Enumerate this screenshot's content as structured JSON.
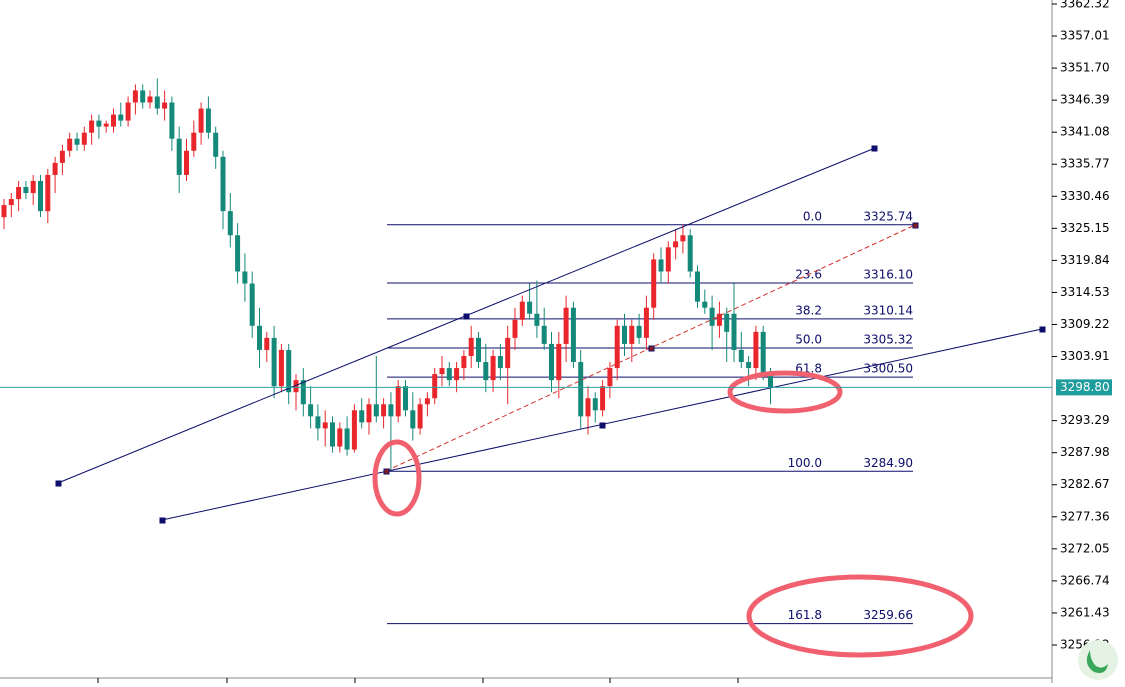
{
  "chart_data": {
    "type": "candlestick",
    "up_color": "#e8262b",
    "down_color": "#14897a",
    "ylim": [
      3250.65,
      3362.98
    ],
    "yticks": [
      3362.32,
      3357.01,
      {
        "value": 3351.7,
        "label": "3351.70"
      },
      3346.39,
      3341.08,
      3335.77,
      3330.46,
      3325.15,
      3319.84,
      3314.53,
      3309.22,
      3303.91,
      3293.29,
      3287.98,
      3282.67,
      3277.36,
      3272.05,
      3266.74,
      3261.43,
      3256.12
    ],
    "current_price": {
      "value": 3298.8,
      "label": "3298.80"
    },
    "fib_levels": [
      {
        "ratio": "0.0",
        "price": 3325.74
      },
      {
        "ratio": "23.6",
        "price": {
          "value": 3316.1,
          "label": "3316.10"
        }
      },
      {
        "ratio": "38.2",
        "price": 3310.14
      },
      {
        "ratio": "50.0",
        "price": 3305.32
      },
      {
        "ratio": "61.8",
        "price": {
          "value": 3300.5,
          "label": "3300.50"
        }
      },
      {
        "ratio": "100.0",
        "price": {
          "value": 3284.9,
          "label": "3284.90"
        }
      },
      {
        "ratio": "161.8",
        "price": 3259.66
      }
    ],
    "candles": [
      [
        3327,
        3330,
        3325,
        3329
      ],
      [
        3329,
        3331,
        3327,
        3330
      ],
      [
        3330,
        3333,
        3328,
        3332
      ],
      [
        3332,
        3333,
        3330,
        3331
      ],
      [
        3331,
        3334,
        3329,
        3333
      ],
      [
        3333,
        3334,
        3327,
        3328
      ],
      [
        3328,
        3335,
        3326,
        3334
      ],
      [
        3334,
        3337,
        3331,
        3336
      ],
      [
        3336,
        3339,
        3334,
        3338
      ],
      [
        3338,
        3341,
        3337,
        3340
      ],
      [
        3340,
        3341,
        3338,
        3339
      ],
      [
        3339,
        3342,
        3338,
        3341
      ],
      [
        3341,
        3344,
        3339,
        3343
      ],
      [
        3343,
        3344,
        3340,
        3342
      ],
      [
        3342,
        3343,
        3341,
        3342.5
      ],
      [
        3342,
        3345,
        3341,
        3344
      ],
      [
        3344,
        3346,
        3342,
        3343
      ],
      [
        3343,
        3347,
        3342,
        3346
      ],
      [
        3346,
        3349,
        3344,
        3348
      ],
      [
        3348,
        3349,
        3345,
        3346
      ],
      [
        3346,
        3348,
        3345,
        3347
      ],
      [
        3347,
        3350,
        3344,
        3345
      ],
      [
        3345,
        3348,
        3343,
        3346
      ],
      [
        3346,
        3347,
        3338,
        3340
      ],
      [
        3340,
        3342,
        3331,
        3334
      ],
      [
        3334,
        3340,
        3333,
        3338
      ],
      [
        3338,
        3343,
        3337,
        3341
      ],
      [
        3341,
        3346,
        3339,
        3345
      ],
      [
        3345,
        3347,
        3340,
        3341
      ],
      [
        3341,
        3342,
        3335,
        3337
      ],
      [
        3337,
        3338,
        3325,
        3328
      ],
      [
        3328,
        3331,
        3322,
        3324
      ],
      [
        3324,
        3326,
        3316,
        3318
      ],
      [
        3318,
        3321,
        3313,
        3316
      ],
      [
        3316,
        3318,
        3307,
        3309
      ],
      [
        3309,
        3312,
        3302,
        3305
      ],
      [
        3305,
        3308,
        3303,
        3307
      ],
      [
        3307,
        3309,
        3297,
        3299
      ],
      [
        3299,
        3306,
        3298,
        3305
      ],
      [
        3305,
        3306,
        3296,
        3298
      ],
      [
        3298,
        3301,
        3295,
        3300
      ],
      [
        3300,
        3302,
        3294,
        3296
      ],
      [
        3296,
        3299,
        3292,
        3294
      ],
      [
        3294,
        3296,
        3290,
        3292
      ],
      [
        3292,
        3295,
        3289,
        3293
      ],
      [
        3293,
        3294,
        3288,
        3289
      ],
      [
        3289,
        3293,
        3288,
        3292
      ],
      [
        3292,
        3294,
        3287.5,
        3288.5
      ],
      [
        3288.5,
        3296,
        3288,
        3295
      ],
      [
        3295,
        3297,
        3292,
        3293
      ],
      [
        3293,
        3297,
        3291,
        3296
      ],
      [
        3296,
        3304,
        3293,
        3294
      ],
      [
        3294,
        3297,
        3292,
        3296
      ],
      [
        3296,
        3298,
        3285,
        3294
      ],
      [
        3294,
        3300,
        3293,
        3299
      ],
      [
        3299,
        3300,
        3294,
        3295
      ],
      [
        3295,
        3298,
        3290,
        3292
      ],
      [
        3292,
        3297,
        3291,
        3296
      ],
      [
        3296,
        3298,
        3294,
        3297
      ],
      [
        3297,
        3302,
        3296,
        3301
      ],
      [
        3301,
        3304,
        3299,
        3302
      ],
      [
        3302,
        3303,
        3299,
        3300
      ],
      [
        3300,
        3303,
        3298,
        3302
      ],
      [
        3302,
        3305,
        3300,
        3304
      ],
      [
        3304,
        3309,
        3302,
        3307
      ],
      [
        3307,
        3308,
        3302,
        3303
      ],
      [
        3303,
        3306,
        3298,
        3300
      ],
      [
        3300,
        3305,
        3298,
        3304
      ],
      [
        3304,
        3306,
        3300,
        3302
      ],
      [
        3302,
        3309,
        3296,
        3307
      ],
      [
        3307,
        3312,
        3305,
        3310
      ],
      [
        3310,
        3314,
        3309,
        3313
      ],
      [
        3313,
        3316,
        3310,
        3311
      ],
      [
        3311,
        3316.5,
        3307,
        3309
      ],
      [
        3309,
        3312,
        3305,
        3306
      ],
      [
        3306,
        3308,
        3298,
        3300
      ],
      [
        3300,
        3308,
        3297,
        3306
      ],
      [
        3306,
        3314,
        3303,
        3312
      ],
      [
        3312,
        3313,
        3302,
        3303
      ],
      [
        3303,
        3305,
        3292,
        3294
      ],
      [
        3294,
        3299,
        3291,
        3297
      ],
      [
        3297,
        3298,
        3293,
        3295
      ],
      [
        3295,
        3300,
        3294,
        3299
      ],
      [
        3299,
        3303,
        3297,
        3302
      ],
      [
        3302,
        3310,
        3300,
        3309
      ],
      [
        3309,
        3311,
        3304,
        3306
      ],
      [
        3306,
        3310,
        3303,
        3309
      ],
      [
        3309,
        3311,
        3306,
        3307
      ],
      [
        3307,
        3314,
        3305,
        3312
      ],
      [
        3312,
        3321,
        3310,
        3320
      ],
      [
        3320,
        3322,
        3316,
        3318
      ],
      [
        3318,
        3323,
        3316,
        3322
      ],
      [
        3322,
        3325,
        3320,
        3323
      ],
      [
        3323,
        3325.74,
        3321,
        3324
      ],
      [
        3324,
        3325,
        3317,
        3318
      ],
      [
        3318,
        3319,
        3312,
        3313
      ],
      [
        3313,
        3315,
        3311,
        3312
      ],
      [
        3312,
        3314,
        3305,
        3309
      ],
      [
        3309,
        3313,
        3307,
        3311
      ],
      [
        3311,
        3312,
        3303,
        3308
      ],
      [
        3311,
        3316,
        3303,
        3305
      ],
      [
        3305,
        3308,
        3302,
        3303
      ],
      [
        3303,
        3304,
        3299,
        3302
      ],
      [
        3302,
        3309,
        3300,
        3308
      ],
      [
        3308,
        3309,
        3300,
        3301
      ],
      [
        3301,
        3302,
        3296,
        3298.8
      ]
    ]
  }
}
